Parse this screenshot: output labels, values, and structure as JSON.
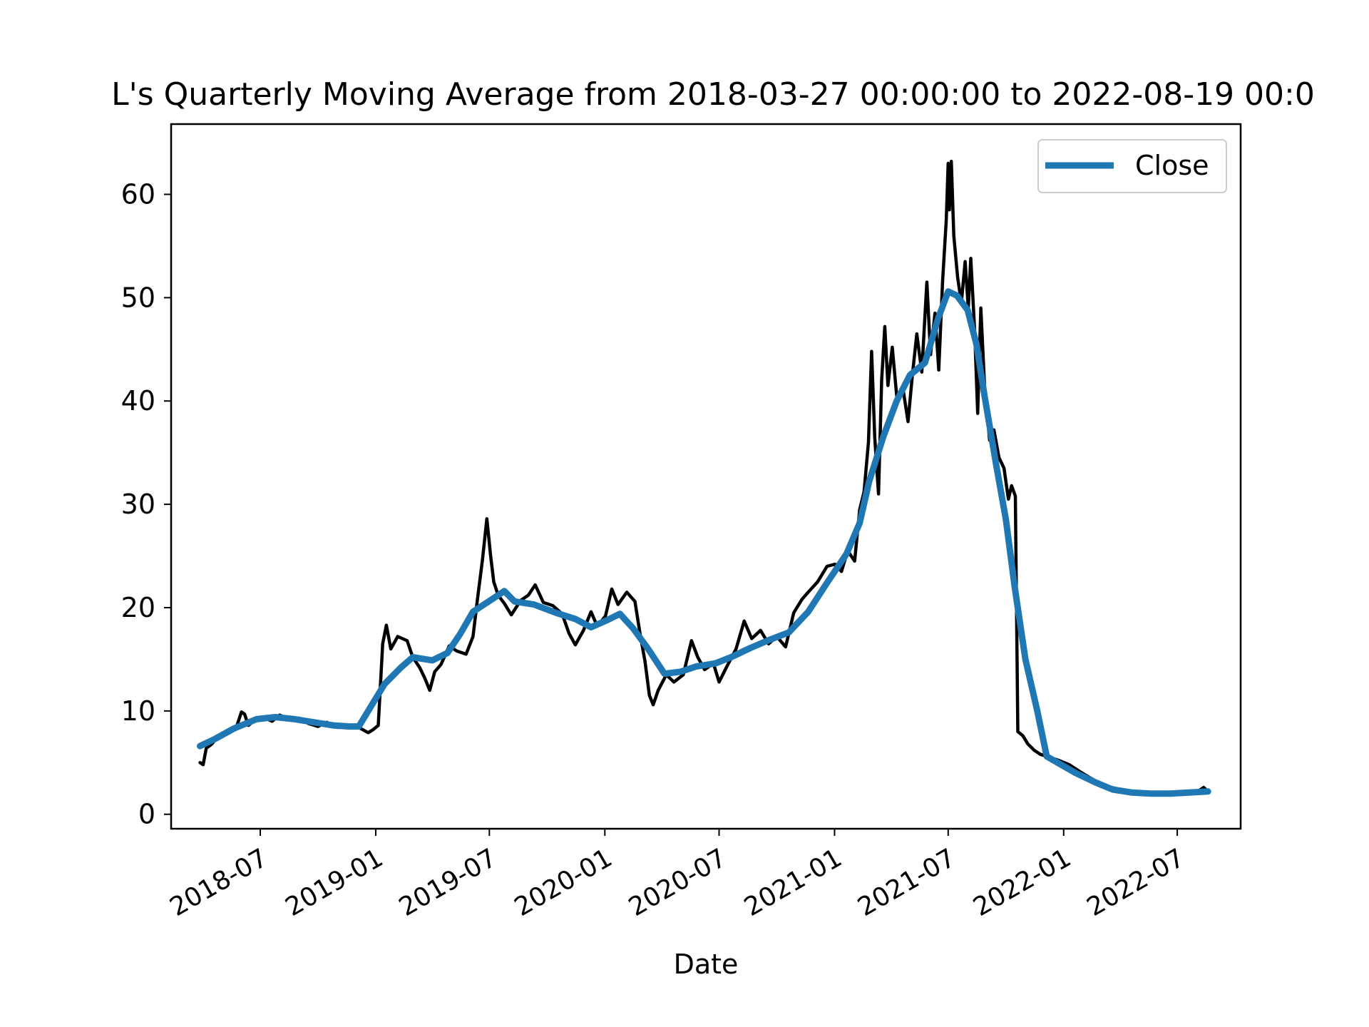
{
  "chart_data": {
    "type": "line",
    "title": "L's Quarterly Moving Average from 2018-03-27 00:00:00 to 2022-08-19 00:0",
    "xlabel": "Date",
    "ylabel": "",
    "xlim": [
      "2018-02-09",
      "2022-10-10"
    ],
    "ylim": [
      -1.4,
      66.8
    ],
    "x_ticks": [
      "2018-07-01",
      "2019-01-01",
      "2019-07-01",
      "2020-01-01",
      "2020-07-01",
      "2021-01-01",
      "2021-07-01",
      "2022-01-01",
      "2022-07-01"
    ],
    "x_tick_labels": [
      "2018-07",
      "2019-01",
      "2019-07",
      "2020-01",
      "2020-07",
      "2021-01",
      "2021-07",
      "2022-01",
      "2022-07"
    ],
    "y_ticks": [
      0,
      10,
      20,
      30,
      40,
      50,
      60
    ],
    "y_tick_labels": [
      "0",
      "10",
      "20",
      "30",
      "40",
      "50",
      "60"
    ],
    "grid": false,
    "legend_position": "upper right",
    "colors": {
      "price": "#000000",
      "moving_average": "#1f77b4"
    },
    "series": [
      {
        "role": "price",
        "data": [
          [
            "2018-03-27",
            5.0
          ],
          [
            "2018-04-01",
            4.8
          ],
          [
            "2018-04-06",
            6.4
          ],
          [
            "2018-04-15",
            6.8
          ],
          [
            "2018-04-25",
            7.6
          ],
          [
            "2018-05-10",
            8.0
          ],
          [
            "2018-05-25",
            8.6
          ],
          [
            "2018-06-01",
            9.9
          ],
          [
            "2018-06-06",
            9.7
          ],
          [
            "2018-06-12",
            8.6
          ],
          [
            "2018-06-22",
            9.1
          ],
          [
            "2018-07-05",
            9.4
          ],
          [
            "2018-07-20",
            9.0
          ],
          [
            "2018-08-01",
            9.6
          ],
          [
            "2018-08-15",
            9.2
          ],
          [
            "2018-09-01",
            9.3
          ],
          [
            "2018-09-15",
            8.8
          ],
          [
            "2018-10-01",
            8.5
          ],
          [
            "2018-10-15",
            8.9
          ],
          [
            "2018-11-01",
            8.4
          ],
          [
            "2018-11-20",
            8.6
          ],
          [
            "2018-12-05",
            8.4
          ],
          [
            "2018-12-20",
            7.9
          ],
          [
            "2018-12-28",
            8.2
          ],
          [
            "2019-01-05",
            8.6
          ],
          [
            "2019-01-12",
            16.5
          ],
          [
            "2019-01-18",
            18.3
          ],
          [
            "2019-01-25",
            16.0
          ],
          [
            "2019-02-05",
            17.2
          ],
          [
            "2019-02-20",
            16.8
          ],
          [
            "2019-03-01",
            15.2
          ],
          [
            "2019-03-12",
            14.2
          ],
          [
            "2019-03-20",
            13.2
          ],
          [
            "2019-03-28",
            12.0
          ],
          [
            "2019-04-05",
            13.8
          ],
          [
            "2019-04-15",
            14.5
          ],
          [
            "2019-04-28",
            16.3
          ],
          [
            "2019-05-10",
            15.8
          ],
          [
            "2019-05-25",
            15.5
          ],
          [
            "2019-06-05",
            17.2
          ],
          [
            "2019-06-12",
            20.8
          ],
          [
            "2019-06-20",
            24.6
          ],
          [
            "2019-06-27",
            28.6
          ],
          [
            "2019-07-03",
            25.0
          ],
          [
            "2019-07-08",
            22.5
          ],
          [
            "2019-07-15",
            21.2
          ],
          [
            "2019-07-25",
            20.4
          ],
          [
            "2019-08-05",
            19.3
          ],
          [
            "2019-08-20",
            20.7
          ],
          [
            "2019-09-01",
            21.2
          ],
          [
            "2019-09-12",
            22.2
          ],
          [
            "2019-09-25",
            20.5
          ],
          [
            "2019-10-10",
            20.2
          ],
          [
            "2019-10-25",
            19.4
          ],
          [
            "2019-11-05",
            17.5
          ],
          [
            "2019-11-15",
            16.4
          ],
          [
            "2019-11-28",
            17.8
          ],
          [
            "2019-12-10",
            19.6
          ],
          [
            "2019-12-20",
            18.2
          ],
          [
            "2020-01-02",
            19.2
          ],
          [
            "2020-01-12",
            21.8
          ],
          [
            "2020-01-22",
            20.3
          ],
          [
            "2020-02-05",
            21.5
          ],
          [
            "2020-02-18",
            20.6
          ],
          [
            "2020-02-26",
            17.5
          ],
          [
            "2020-03-05",
            14.8
          ],
          [
            "2020-03-12",
            11.5
          ],
          [
            "2020-03-18",
            10.6
          ],
          [
            "2020-03-26",
            12.0
          ],
          [
            "2020-04-08",
            13.5
          ],
          [
            "2020-04-20",
            12.8
          ],
          [
            "2020-05-05",
            13.5
          ],
          [
            "2020-05-18",
            16.8
          ],
          [
            "2020-05-28",
            15.2
          ],
          [
            "2020-06-08",
            14.0
          ],
          [
            "2020-06-22",
            14.6
          ],
          [
            "2020-07-01",
            12.8
          ],
          [
            "2020-07-15",
            14.5
          ],
          [
            "2020-07-28",
            16.0
          ],
          [
            "2020-08-10",
            18.7
          ],
          [
            "2020-08-22",
            17.0
          ],
          [
            "2020-09-05",
            17.8
          ],
          [
            "2020-09-18",
            16.5
          ],
          [
            "2020-10-01",
            17.2
          ],
          [
            "2020-10-15",
            16.2
          ],
          [
            "2020-10-28",
            19.5
          ],
          [
            "2020-11-10",
            20.8
          ],
          [
            "2020-11-20",
            21.5
          ],
          [
            "2020-12-05",
            22.5
          ],
          [
            "2020-12-20",
            24.0
          ],
          [
            "2021-01-02",
            24.2
          ],
          [
            "2021-01-12",
            23.5
          ],
          [
            "2021-01-22",
            25.5
          ],
          [
            "2021-02-02",
            24.5
          ],
          [
            "2021-02-10",
            29.5
          ],
          [
            "2021-02-17",
            31.2
          ],
          [
            "2021-02-24",
            36.0
          ],
          [
            "2021-03-01",
            44.8
          ],
          [
            "2021-03-06",
            36.5
          ],
          [
            "2021-03-12",
            31.0
          ],
          [
            "2021-03-17",
            42.0
          ],
          [
            "2021-03-22",
            47.2
          ],
          [
            "2021-03-27",
            41.5
          ],
          [
            "2021-04-03",
            45.2
          ],
          [
            "2021-04-10",
            40.5
          ],
          [
            "2021-04-20",
            41.2
          ],
          [
            "2021-04-28",
            38.0
          ],
          [
            "2021-05-05",
            42.5
          ],
          [
            "2021-05-12",
            46.5
          ],
          [
            "2021-05-20",
            42.8
          ],
          [
            "2021-05-28",
            51.5
          ],
          [
            "2021-06-03",
            44.5
          ],
          [
            "2021-06-10",
            48.5
          ],
          [
            "2021-06-16",
            43.0
          ],
          [
            "2021-06-22",
            51.5
          ],
          [
            "2021-06-28",
            57.5
          ],
          [
            "2021-07-01",
            63.0
          ],
          [
            "2021-07-03",
            58.5
          ],
          [
            "2021-07-06",
            63.2
          ],
          [
            "2021-07-10",
            56.0
          ],
          [
            "2021-07-16",
            52.0
          ],
          [
            "2021-07-22",
            49.5
          ],
          [
            "2021-07-28",
            53.5
          ],
          [
            "2021-08-02",
            49.0
          ],
          [
            "2021-08-06",
            53.8
          ],
          [
            "2021-08-12",
            47.0
          ],
          [
            "2021-08-17",
            38.8
          ],
          [
            "2021-08-22",
            49.0
          ],
          [
            "2021-08-28",
            41.5
          ],
          [
            "2021-09-05",
            36.2
          ],
          [
            "2021-09-12",
            37.2
          ],
          [
            "2021-09-20",
            34.5
          ],
          [
            "2021-09-28",
            33.5
          ],
          [
            "2021-10-05",
            30.5
          ],
          [
            "2021-10-10",
            31.8
          ],
          [
            "2021-10-16",
            30.8
          ],
          [
            "2021-10-20",
            8.0
          ],
          [
            "2021-10-28",
            7.6
          ],
          [
            "2021-11-05",
            6.8
          ],
          [
            "2021-11-15",
            6.2
          ],
          [
            "2021-11-25",
            5.8
          ],
          [
            "2021-12-10",
            5.5
          ],
          [
            "2021-12-25",
            5.2
          ],
          [
            "2022-01-10",
            4.8
          ],
          [
            "2022-01-25",
            4.2
          ],
          [
            "2022-02-10",
            3.6
          ],
          [
            "2022-02-25",
            3.1
          ],
          [
            "2022-03-10",
            2.7
          ],
          [
            "2022-03-25",
            2.5
          ],
          [
            "2022-04-10",
            2.2
          ],
          [
            "2022-04-25",
            2.1
          ],
          [
            "2022-05-10",
            1.9
          ],
          [
            "2022-05-25",
            2.0
          ],
          [
            "2022-06-10",
            2.1
          ],
          [
            "2022-06-25",
            2.0
          ],
          [
            "2022-07-10",
            2.2
          ],
          [
            "2022-07-25",
            2.1
          ],
          [
            "2022-08-05",
            2.3
          ],
          [
            "2022-08-12",
            2.6
          ],
          [
            "2022-08-19",
            2.2
          ]
        ]
      },
      {
        "name": "Close",
        "role": "moving_average",
        "data": [
          [
            "2018-03-27",
            6.6
          ],
          [
            "2018-04-20",
            7.3
          ],
          [
            "2018-05-20",
            8.3
          ],
          [
            "2018-06-25",
            9.2
          ],
          [
            "2018-07-25",
            9.4
          ],
          [
            "2018-08-25",
            9.2
          ],
          [
            "2018-09-25",
            8.9
          ],
          [
            "2018-10-25",
            8.6
          ],
          [
            "2018-11-20",
            8.5
          ],
          [
            "2018-12-05",
            8.5
          ],
          [
            "2018-12-25",
            10.5
          ],
          [
            "2019-01-15",
            12.6
          ],
          [
            "2019-02-10",
            14.2
          ],
          [
            "2019-03-01",
            15.2
          ],
          [
            "2019-04-01",
            14.9
          ],
          [
            "2019-04-25",
            15.6
          ],
          [
            "2019-05-15",
            17.4
          ],
          [
            "2019-06-05",
            19.6
          ],
          [
            "2019-07-05",
            20.8
          ],
          [
            "2019-07-25",
            21.6
          ],
          [
            "2019-08-10",
            20.6
          ],
          [
            "2019-09-10",
            20.3
          ],
          [
            "2019-10-15",
            19.5
          ],
          [
            "2019-11-15",
            18.9
          ],
          [
            "2019-12-10",
            18.1
          ],
          [
            "2020-01-05",
            18.8
          ],
          [
            "2020-01-25",
            19.4
          ],
          [
            "2020-02-15",
            18.0
          ],
          [
            "2020-03-10",
            16.0
          ],
          [
            "2020-04-05",
            13.6
          ],
          [
            "2020-05-01",
            13.8
          ],
          [
            "2020-05-25",
            14.3
          ],
          [
            "2020-06-25",
            14.6
          ],
          [
            "2020-07-20",
            15.2
          ],
          [
            "2020-08-20",
            16.1
          ],
          [
            "2020-09-20",
            16.9
          ],
          [
            "2020-10-20",
            17.6
          ],
          [
            "2020-11-20",
            19.6
          ],
          [
            "2020-12-20",
            22.4
          ],
          [
            "2021-01-20",
            25.2
          ],
          [
            "2021-02-10",
            28.2
          ],
          [
            "2021-02-25",
            32.2
          ],
          [
            "2021-03-20",
            36.6
          ],
          [
            "2021-04-10",
            40.0
          ],
          [
            "2021-05-01",
            42.5
          ],
          [
            "2021-05-25",
            43.7
          ],
          [
            "2021-06-15",
            48.0
          ],
          [
            "2021-07-01",
            50.6
          ],
          [
            "2021-07-15",
            50.2
          ],
          [
            "2021-08-01",
            48.8
          ],
          [
            "2021-08-15",
            45.5
          ],
          [
            "2021-08-28",
            40.5
          ],
          [
            "2021-09-15",
            34.0
          ],
          [
            "2021-10-01",
            28.5
          ],
          [
            "2021-10-15",
            22.0
          ],
          [
            "2021-11-01",
            15.0
          ],
          [
            "2021-11-20",
            10.0
          ],
          [
            "2021-12-05",
            5.6
          ],
          [
            "2021-12-25",
            4.9
          ],
          [
            "2022-01-20",
            4.0
          ],
          [
            "2022-02-20",
            3.1
          ],
          [
            "2022-03-20",
            2.4
          ],
          [
            "2022-04-20",
            2.1
          ],
          [
            "2022-05-20",
            2.0
          ],
          [
            "2022-06-20",
            2.0
          ],
          [
            "2022-07-20",
            2.1
          ],
          [
            "2022-08-19",
            2.2
          ]
        ]
      }
    ]
  }
}
